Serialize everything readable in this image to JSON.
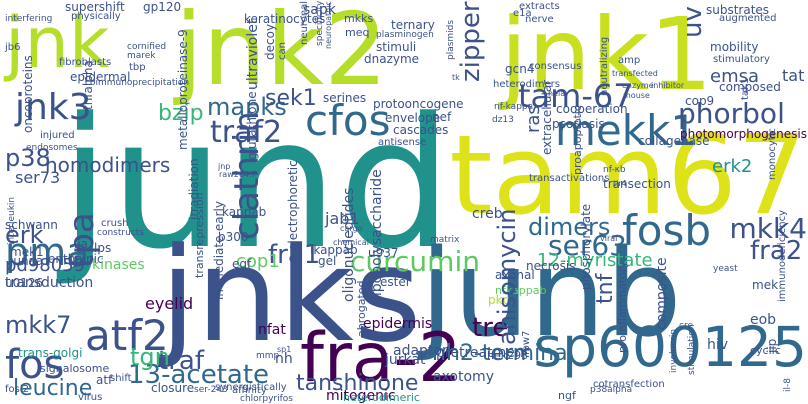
{
  "palette": {
    "dark_purple": "#440154",
    "indigo": "#3b528b",
    "blue": "#31688e",
    "teal": "#21918c",
    "green": "#35b779",
    "light_green": "#5ec962",
    "lime": "#b5de2b",
    "yellow": "#dde318",
    "pale": "#c8e020"
  },
  "words": [
    {
      "text": "jund",
      "color": "#21918c",
      "rotate": false
    },
    {
      "text": "junb",
      "color": "#31688e",
      "rotate": false
    },
    {
      "text": "jnks",
      "color": "#3b528b",
      "rotate": false
    },
    {
      "text": "tam67",
      "color": "#dde318",
      "rotate": false
    },
    {
      "text": "jnk1",
      "color": "#c8e020",
      "rotate": false
    },
    {
      "text": "jnk2",
      "color": "#b5de2b",
      "rotate": false
    },
    {
      "text": "jnk",
      "color": "#b5de2b",
      "rotate": false
    },
    {
      "text": "fra-2",
      "color": "#440154",
      "rotate": false
    },
    {
      "text": "sp600125",
      "color": "#31688e",
      "rotate": false
    },
    {
      "text": "mekk1",
      "color": "#31688e",
      "rotate": false
    },
    {
      "text": "cfos",
      "color": "#31688e",
      "rotate": false
    },
    {
      "text": "fosb",
      "color": "#31688e",
      "rotate": false
    },
    {
      "text": "jnk3",
      "color": "#3b528b",
      "rotate": false
    },
    {
      "text": "atf2",
      "color": "#3b528b",
      "rotate": false
    },
    {
      "text": "pma",
      "color": "#31688e",
      "rotate": false
    },
    {
      "text": "fos",
      "color": "#3b528b",
      "rotate": false
    },
    {
      "text": "tam-67",
      "color": "#3b528b",
      "rotate": false
    },
    {
      "text": "phorbol",
      "color": "#3b528b",
      "rotate": false
    },
    {
      "text": "mapks",
      "color": "#31688e",
      "rotate": false
    },
    {
      "text": "traf2",
      "color": "#3b528b",
      "rotate": false
    },
    {
      "text": "curcumin",
      "color": "#5ec962",
      "rotate": false
    },
    {
      "text": "mkk4",
      "color": "#3b528b",
      "rotate": false
    },
    {
      "text": "fra2",
      "color": "#3b528b",
      "rotate": false
    },
    {
      "text": "fra1",
      "color": "#3b528b",
      "rotate": false
    },
    {
      "text": "dimers",
      "color": "#31688e",
      "rotate": false
    },
    {
      "text": "ser63",
      "color": "#31688e",
      "rotate": false
    },
    {
      "text": "erk",
      "color": "#3b528b",
      "rotate": false
    },
    {
      "text": "mkk7",
      "color": "#3b528b",
      "rotate": false
    },
    {
      "text": "leucine",
      "color": "#31688e",
      "rotate": false
    },
    {
      "text": "13-acetate",
      "color": "#31688e",
      "rotate": false
    },
    {
      "text": "traf",
      "color": "#3b528b",
      "rotate": false
    },
    {
      "text": "tre",
      "color": "#440154",
      "rotate": false
    },
    {
      "text": "tgn",
      "color": "#35b779",
      "rotate": false
    },
    {
      "text": "tanshinone",
      "color": "#3b528b",
      "rotate": false
    },
    {
      "text": "nh2-terminal",
      "color": "#31688e",
      "rotate": false
    },
    {
      "text": "bzip",
      "color": "#35b779",
      "rotate": false
    },
    {
      "text": "p38",
      "color": "#3b528b",
      "rotate": false
    },
    {
      "text": "homodimers",
      "color": "#3b528b",
      "rotate": false
    },
    {
      "text": "sek1",
      "color": "#3b528b",
      "rotate": false
    },
    {
      "text": "emsa",
      "color": "#3b528b",
      "rotate": false
    },
    {
      "text": "erk2",
      "color": "#21918c",
      "rotate": false
    },
    {
      "text": "12-myristate",
      "color": "#35b779",
      "rotate": false
    },
    {
      "text": "pd98059",
      "color": "#3b528b",
      "rotate": false
    },
    {
      "text": "ser73",
      "color": "#3b528b",
      "rotate": false
    },
    {
      "text": "cop1",
      "color": "#5ec962",
      "rotate": false
    },
    {
      "text": "jab1",
      "color": "#3b528b",
      "rotate": false
    },
    {
      "text": "eyelid",
      "color": "#440154",
      "rotate": false
    },
    {
      "text": "epidermis",
      "color": "#440154",
      "rotate": false
    },
    {
      "text": "tat",
      "color": "#3b528b",
      "rotate": false
    },
    {
      "text": "eob",
      "color": "#3b528b",
      "rotate": false
    },
    {
      "text": "hiv",
      "color": "#3b528b",
      "rotate": false
    },
    {
      "text": "mek",
      "color": "#3b528b",
      "rotate": false
    },
    {
      "text": "creb",
      "color": "#3b528b",
      "rotate": false
    },
    {
      "text": "nf-κb",
      "color": "#3b528b",
      "rotate": false
    },
    {
      "text": "mitogenic",
      "color": "#440154",
      "rotate": false
    },
    {
      "text": "axotomy",
      "color": "#3b528b",
      "rotate": false
    },
    {
      "text": "pretreatment",
      "color": "#3b528b",
      "rotate": false
    },
    {
      "text": "jurkat",
      "color": "#3b528b",
      "rotate": false
    },
    {
      "text": "adaptor",
      "color": "#3b528b",
      "rotate": false
    },
    {
      "text": "nfat",
      "color": "#440154",
      "rotate": false
    },
    {
      "text": "nh",
      "color": "#3b528b",
      "rotate": false
    },
    {
      "text": "necrosis",
      "color": "#3b528b",
      "rotate": false
    },
    {
      "text": "nfkappab",
      "color": "#5ec962",
      "rotate": false
    },
    {
      "text": "transduction",
      "color": "#3b528b",
      "rotate": false
    },
    {
      "text": "trans-golgi",
      "color": "#21918c",
      "rotate": false
    },
    {
      "text": "enthalpic",
      "color": "#3b528b",
      "rotate": false
    },
    {
      "text": "u0126",
      "color": "#3b528b",
      "rotate": false
    },
    {
      "text": "junaa",
      "color": "#3b528b",
      "rotate": false
    },
    {
      "text": "mek1",
      "color": "#3b528b",
      "rotate": false
    },
    {
      "text": "schwann",
      "color": "#3b528b",
      "rotate": false
    },
    {
      "text": "kinases",
      "color": "#5ec962",
      "rotate": false
    },
    {
      "text": "lps",
      "color": "#3b528b",
      "rotate": false
    },
    {
      "text": "iia",
      "color": "#3b528b",
      "rotate": false
    },
    {
      "text": "egf",
      "color": "#3b528b",
      "rotate": false
    },
    {
      "text": "p300",
      "color": "#3b528b",
      "rotate": false
    },
    {
      "text": "ikappab",
      "color": "#3b528b",
      "rotate": false
    },
    {
      "text": "gel",
      "color": "#3b528b",
      "rotate": false
    },
    {
      "text": "kappab",
      "color": "#3b528b",
      "rotate": false
    },
    {
      "text": "u937",
      "color": "#3b528b",
      "rotate": false
    },
    {
      "text": "ester",
      "color": "#3b528b",
      "rotate": false
    },
    {
      "text": "axonal",
      "color": "#3b528b",
      "rotate": false
    },
    {
      "text": "pkc",
      "color": "#b5de2b",
      "rotate": false
    },
    {
      "text": "closure",
      "color": "#3b528b",
      "rotate": false
    },
    {
      "text": "heterodimeric",
      "color": "#21918c",
      "rotate": false
    },
    {
      "text": "signalosome",
      "color": "#3b528b",
      "rotate": false
    },
    {
      "text": "atf",
      "color": "#3b528b",
      "rotate": false
    },
    {
      "text": "shift",
      "color": "#3b528b",
      "rotate": false
    },
    {
      "text": "fosl2",
      "color": "#3b528b",
      "rotate": false
    },
    {
      "text": "ser-243",
      "color": "#3b528b",
      "rotate": false
    },
    {
      "text": "affinity",
      "color": "#3b528b",
      "rotate": false
    },
    {
      "text": "ngf",
      "color": "#3b528b",
      "rotate": false
    },
    {
      "text": "cotransfection",
      "color": "#3b528b",
      "rotate": false
    },
    {
      "text": "hek293",
      "color": "#3b528b",
      "rotate": false
    },
    {
      "text": "cyclic",
      "color": "#3b528b",
      "rotate": false
    },
    {
      "text": "collagenase",
      "color": "#3b528b",
      "rotate": false
    },
    {
      "text": "cooperation",
      "color": "#3b528b",
      "rotate": false
    },
    {
      "text": "psoriasis",
      "color": "#3b528b",
      "rotate": false
    },
    {
      "text": "photomorphogenesis",
      "color": "#440154",
      "rotate": false
    },
    {
      "text": "transection",
      "color": "#3b528b",
      "rotate": false
    },
    {
      "text": "transactivations",
      "color": "#3b528b",
      "rotate": false
    },
    {
      "text": "cop9",
      "color": "#3b528b",
      "rotate": false
    },
    {
      "text": "composed",
      "color": "#3b528b",
      "rotate": false
    },
    {
      "text": "mobility",
      "color": "#3b528b",
      "rotate": false
    },
    {
      "text": "stimulatory",
      "color": "#3b528b",
      "rotate": false
    },
    {
      "text": "substrates",
      "color": "#3b528b",
      "rotate": false
    },
    {
      "text": "augmented",
      "color": "#3b528b",
      "rotate": false
    },
    {
      "text": "consensus",
      "color": "#3b528b",
      "rotate": false
    },
    {
      "text": "amp",
      "color": "#3b528b",
      "rotate": false
    },
    {
      "text": "nerve",
      "color": "#3b528b",
      "rotate": false
    },
    {
      "text": "extracts",
      "color": "#3b528b",
      "rotate": false
    },
    {
      "text": "e1a",
      "color": "#3b528b",
      "rotate": false
    },
    {
      "text": "gcn4",
      "color": "#3b528b",
      "rotate": false
    },
    {
      "text": "nf-kappa",
      "color": "#3b528b",
      "rotate": false
    },
    {
      "text": "dz13",
      "color": "#3b528b",
      "rotate": false
    },
    {
      "text": "heterodimers",
      "color": "#3b528b",
      "rotate": false
    },
    {
      "text": "protooncogene",
      "color": "#3b528b",
      "rotate": false
    },
    {
      "text": "envelope",
      "color": "#3b528b",
      "rotate": false
    },
    {
      "text": "antisense",
      "color": "#3b528b",
      "rotate": false
    },
    {
      "text": "serines",
      "color": "#3b528b",
      "rotate": false
    },
    {
      "text": "cascades",
      "color": "#3b528b",
      "rotate": false
    },
    {
      "text": "nef",
      "color": "#3b528b",
      "rotate": false
    },
    {
      "text": "stimuli",
      "color": "#3b528b",
      "rotate": false
    },
    {
      "text": "dnazyme",
      "color": "#3b528b",
      "rotate": false
    },
    {
      "text": "ternary",
      "color": "#3b528b",
      "rotate": false
    },
    {
      "text": "plasminogen",
      "color": "#3b528b",
      "rotate": false
    },
    {
      "text": "meq",
      "color": "#3b528b",
      "rotate": false
    },
    {
      "text": "mkks",
      "color": "#3b528b",
      "rotate": false
    },
    {
      "text": "sapk",
      "color": "#3b528b",
      "rotate": false
    },
    {
      "text": "keratinocytes",
      "color": "#3b528b",
      "rotate": false
    },
    {
      "text": "gp120",
      "color": "#3b528b",
      "rotate": false
    },
    {
      "text": "supershift",
      "color": "#3b528b",
      "rotate": false
    },
    {
      "text": "physically",
      "color": "#3b528b",
      "rotate": false
    },
    {
      "text": "interfering",
      "color": "#3b528b",
      "rotate": false
    },
    {
      "text": "cornified",
      "color": "#3b528b",
      "rotate": false
    },
    {
      "text": "marek",
      "color": "#3b528b",
      "rotate": false
    },
    {
      "text": "tbp",
      "color": "#3b528b",
      "rotate": false
    },
    {
      "text": "epidermal",
      "color": "#3b528b",
      "rotate": false
    },
    {
      "text": "fibroblasts",
      "color": "#3b528b",
      "rotate": false
    },
    {
      "text": "coimmunoprecipitation",
      "color": "#3b528b",
      "rotate": false
    },
    {
      "text": "virus",
      "color": "#3b528b",
      "rotate": false
    },
    {
      "text": "jb6",
      "color": "#3b528b",
      "rotate": false
    },
    {
      "text": "injured",
      "color": "#3b528b",
      "rotate": false
    },
    {
      "text": "endosomes",
      "color": "#3b528b",
      "rotate": false
    },
    {
      "text": "crush",
      "color": "#3b528b",
      "rotate": false
    },
    {
      "text": "constructs",
      "color": "#3b528b",
      "rotate": false
    },
    {
      "text": "irradiation",
      "color": "#3b528b",
      "rotate": false
    },
    {
      "text": "metalloproteinase-9",
      "color": "#3b528b",
      "rotate": false
    },
    {
      "text": "immediate-early",
      "color": "#3b528b",
      "rotate": false
    },
    {
      "text": "electrophoretic",
      "color": "#3b528b",
      "rotate": false
    },
    {
      "text": "raw264.7",
      "color": "#3b528b",
      "rotate": false
    },
    {
      "text": "jnp",
      "color": "#3b528b",
      "rotate": false
    },
    {
      "text": "transrepression",
      "color": "#3b528b",
      "rotate": false
    },
    {
      "text": "mmp",
      "color": "#3b528b",
      "rotate": false
    },
    {
      "text": "sp1",
      "color": "#3b528b",
      "rotate": false
    },
    {
      "text": "abrogated",
      "color": "#3b528b",
      "rotate": false
    },
    {
      "text": "chemical",
      "color": "#3b528b",
      "rotate": false
    },
    {
      "text": "cargo",
      "color": "#3b528b",
      "rotate": false
    },
    {
      "text": "matrix",
      "color": "#3b528b",
      "rotate": false
    },
    {
      "text": "fbw7",
      "color": "#3b528b",
      "rotate": false
    },
    {
      "text": "proinflammatory",
      "color": "#3b528b",
      "rotate": false
    },
    {
      "text": "phosphorylate",
      "color": "#3b528b",
      "rotate": false
    },
    {
      "text": "proapoptotic",
      "color": "#3b528b",
      "rotate": false
    },
    {
      "text": "viral",
      "color": "#3b528b",
      "rotate": false
    },
    {
      "text": "tlr4",
      "color": "#3b528b",
      "rotate": false
    },
    {
      "text": "cre",
      "color": "#3b528b",
      "rotate": false
    },
    {
      "text": "yeast",
      "color": "#3b528b",
      "rotate": false
    },
    {
      "text": "p38alpha",
      "color": "#3b528b",
      "rotate": false
    },
    {
      "text": "il-8",
      "color": "#3b528b",
      "rotate": false
    },
    {
      "text": "immunodeficiency",
      "color": "#3b528b",
      "rotate": false
    },
    {
      "text": "monocytic",
      "color": "#3b528b",
      "rotate": false
    },
    {
      "text": "jip",
      "color": "#3b528b",
      "rotate": false
    },
    {
      "text": "involucrin",
      "color": "#3b528b",
      "rotate": false
    },
    {
      "text": "stimulation",
      "color": "#3b528b",
      "rotate": false
    },
    {
      "text": "chlorpyrifos",
      "color": "#3b528b",
      "rotate": false
    },
    {
      "text": "synergistically",
      "color": "#3b528b",
      "rotate": false
    },
    {
      "text": "interleukin",
      "color": "#3b528b",
      "rotate": false
    },
    {
      "text": "oncoproteins",
      "color": "#3b528b",
      "rotate": false
    },
    {
      "text": "tnfalpha",
      "color": "#3b528b",
      "rotate": false
    },
    {
      "text": "ultraviolet",
      "color": "#3b528b",
      "rotate": false
    },
    {
      "text": "glutathione",
      "color": "#3b528b",
      "rotate": false
    },
    {
      "text": "decoy",
      "color": "#3b528b",
      "rotate": false
    },
    {
      "text": "can",
      "color": "#3b528b",
      "rotate": false
    },
    {
      "text": "neuronal",
      "color": "#3b528b",
      "rotate": false
    },
    {
      "text": "zipper",
      "color": "#3b528b",
      "rotate": false
    },
    {
      "text": "uv",
      "color": "#3b528b",
      "rotate": false
    },
    {
      "text": "ras",
      "color": "#3b528b",
      "rotate": false
    },
    {
      "text": "extracellular",
      "color": "#3b528b",
      "rotate": false
    },
    {
      "text": "neutralizing",
      "color": "#3b528b",
      "rotate": false
    },
    {
      "text": "tak1",
      "color": "#3b528b",
      "rotate": false
    },
    {
      "text": "tpa",
      "color": "#3b528b",
      "rotate": false
    },
    {
      "text": "clathrin",
      "color": "#3b528b",
      "rotate": false
    },
    {
      "text": "anisomycin",
      "color": "#3b528b",
      "rotate": false
    },
    {
      "text": "tnf",
      "color": "#3b528b",
      "rotate": false
    },
    {
      "text": "oligonucleotides",
      "color": "#3b528b",
      "rotate": false
    },
    {
      "text": "lipopolysaccharide",
      "color": "#3b528b",
      "rotate": false
    },
    {
      "text": "composite",
      "color": "#3b528b",
      "rotate": false
    },
    {
      "text": "plasmids",
      "color": "#3b528b",
      "rotate": false
    },
    {
      "text": "hela",
      "color": "#3b528b",
      "rotate": false
    },
    {
      "text": "mouse",
      "color": "#3b528b",
      "rotate": false
    },
    {
      "text": "specificity",
      "color": "#3b528b",
      "rotate": false
    },
    {
      "text": "tk",
      "color": "#3b528b",
      "rotate": false
    },
    {
      "text": "neuropathic",
      "color": "#3b528b",
      "rotate": false
    },
    {
      "text": "enzyme",
      "color": "#3b528b",
      "rotate": false
    },
    {
      "text": "transfected",
      "color": "#3b528b",
      "rotate": false
    },
    {
      "text": "inhibitor",
      "color": "#3b528b",
      "rotate": false
    }
  ]
}
